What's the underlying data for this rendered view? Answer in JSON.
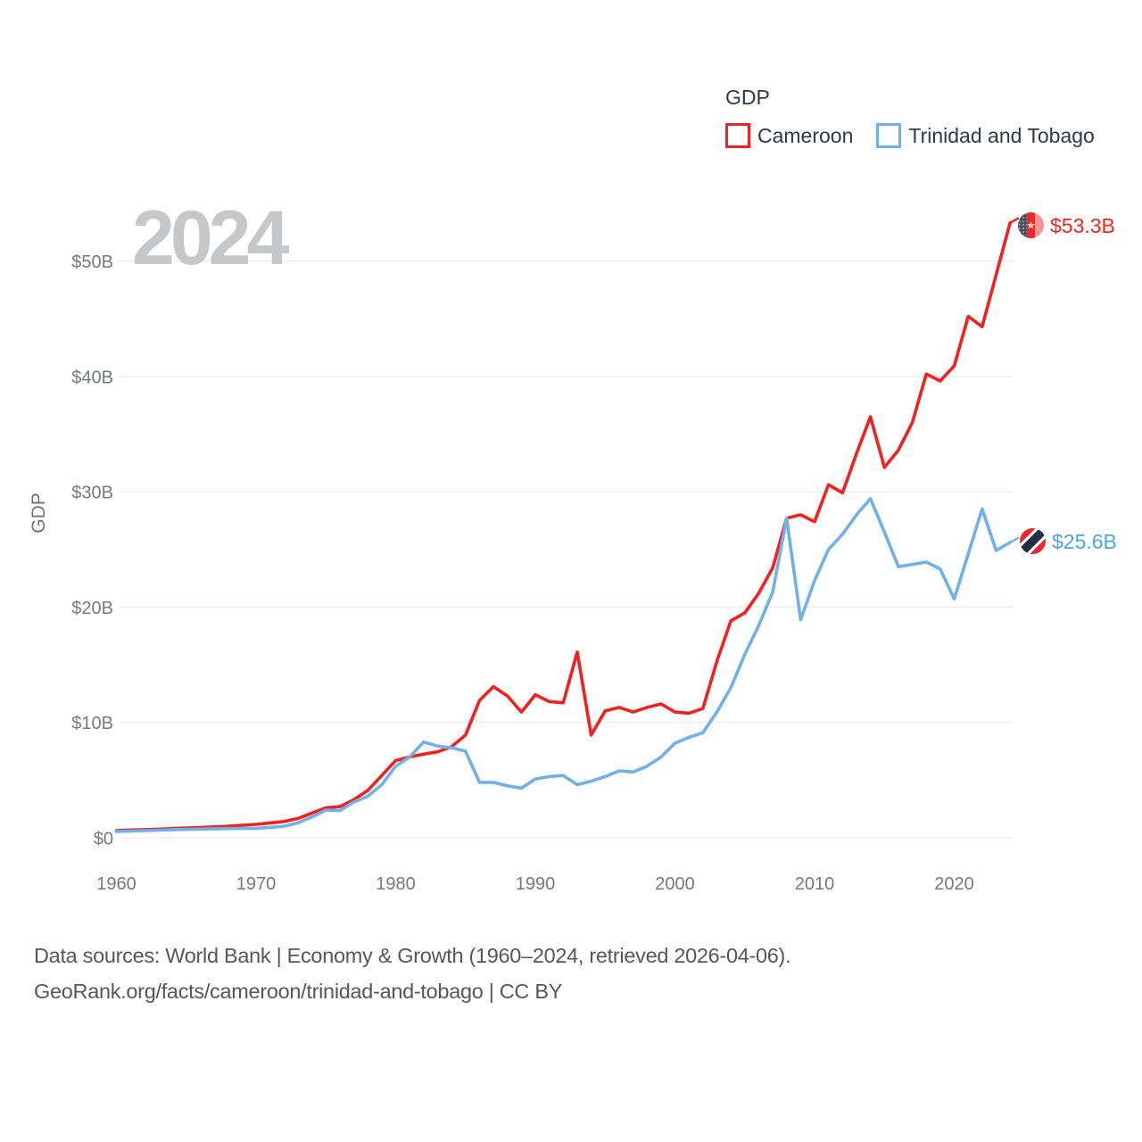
{
  "legend": {
    "title": "GDP",
    "items": [
      {
        "label": "Cameroon",
        "color": "#f3241f"
      },
      {
        "label": "Trinidad and Tobago",
        "color": "#74b3ea"
      }
    ]
  },
  "watermark": "2024",
  "icons": {
    "cameroon_flag": "cameroon-flag-icon",
    "trinidad_flag": "trinidad-and-tobago-flag-icon",
    "star_glyph": "★"
  },
  "footer": {
    "line1": "Data sources: World Bank | Economy & Growth (1960–2024, retrieved 2026-04-06).",
    "line2": "GeoRank.org/facts/cameroon/trinidad-and-tobago | CC BY"
  },
  "chart_data": {
    "type": "line",
    "title": "GDP",
    "ylabel": "GDP",
    "xlabel": "",
    "grid": "horizontal",
    "legend_position": "top-right",
    "ylim": [
      0,
      55
    ],
    "xlim": [
      1958,
      2026
    ],
    "y_ticks": [
      {
        "value": 0,
        "label": "$0"
      },
      {
        "value": 10,
        "label": "$10B"
      },
      {
        "value": 20,
        "label": "$20B"
      },
      {
        "value": 30,
        "label": "$30B"
      },
      {
        "value": 40,
        "label": "$40B"
      },
      {
        "value": 50,
        "label": "$50B"
      }
    ],
    "x_ticks": [
      1960,
      1970,
      1980,
      1990,
      2000,
      2010,
      2020
    ],
    "x": [
      1960,
      1961,
      1962,
      1963,
      1964,
      1965,
      1966,
      1967,
      1968,
      1969,
      1970,
      1971,
      1972,
      1973,
      1974,
      1975,
      1976,
      1977,
      1978,
      1979,
      1980,
      1981,
      1982,
      1983,
      1984,
      1985,
      1986,
      1987,
      1988,
      1989,
      1990,
      1991,
      1992,
      1993,
      1994,
      1995,
      1996,
      1997,
      1998,
      1999,
      2000,
      2001,
      2002,
      2003,
      2004,
      2005,
      2006,
      2007,
      2008,
      2009,
      2010,
      2011,
      2012,
      2013,
      2014,
      2015,
      2016,
      2017,
      2018,
      2019,
      2020,
      2021,
      2022,
      2023,
      2024
    ],
    "series": [
      {
        "name": "Cameroon",
        "color": "#f2201e",
        "label_color": "#f3241f",
        "end_label": "$53.3B",
        "values": [
          0.62,
          0.67,
          0.7,
          0.74,
          0.8,
          0.84,
          0.88,
          0.94,
          1.0,
          1.08,
          1.16,
          1.28,
          1.41,
          1.67,
          2.14,
          2.6,
          2.7,
          3.3,
          4.1,
          5.4,
          6.7,
          7.0,
          7.25,
          7.45,
          7.9,
          8.9,
          11.9,
          13.1,
          12.3,
          10.9,
          12.4,
          11.8,
          11.7,
          16.1,
          8.9,
          11.0,
          11.3,
          10.9,
          11.3,
          11.6,
          10.9,
          10.8,
          11.2,
          15.3,
          18.8,
          19.5,
          21.2,
          23.4,
          27.7,
          28.0,
          27.4,
          30.6,
          29.9,
          33.3,
          36.5,
          32.1,
          33.6,
          36.0,
          40.2,
          39.6,
          40.9,
          45.2,
          44.3,
          48.8,
          53.3
        ]
      },
      {
        "name": "Trinidad and Tobago",
        "color": "#6fb1e8",
        "label_color": "#4da3ea",
        "end_label": "$25.6B",
        "values": [
          0.54,
          0.58,
          0.62,
          0.66,
          0.7,
          0.73,
          0.75,
          0.78,
          0.8,
          0.81,
          0.82,
          0.9,
          1.0,
          1.3,
          1.8,
          2.4,
          2.35,
          3.1,
          3.6,
          4.6,
          6.2,
          7.0,
          8.3,
          7.95,
          7.8,
          7.5,
          4.8,
          4.8,
          4.5,
          4.3,
          5.1,
          5.3,
          5.4,
          4.6,
          4.9,
          5.3,
          5.8,
          5.7,
          6.2,
          7.0,
          8.2,
          8.7,
          9.1,
          10.9,
          13.0,
          15.9,
          18.4,
          21.3,
          27.7,
          18.9,
          22.3,
          25.0,
          26.3,
          28.0,
          29.4,
          26.5,
          23.5,
          23.7,
          23.9,
          23.3,
          20.7,
          24.6,
          28.5,
          24.9,
          25.6
        ]
      }
    ]
  }
}
